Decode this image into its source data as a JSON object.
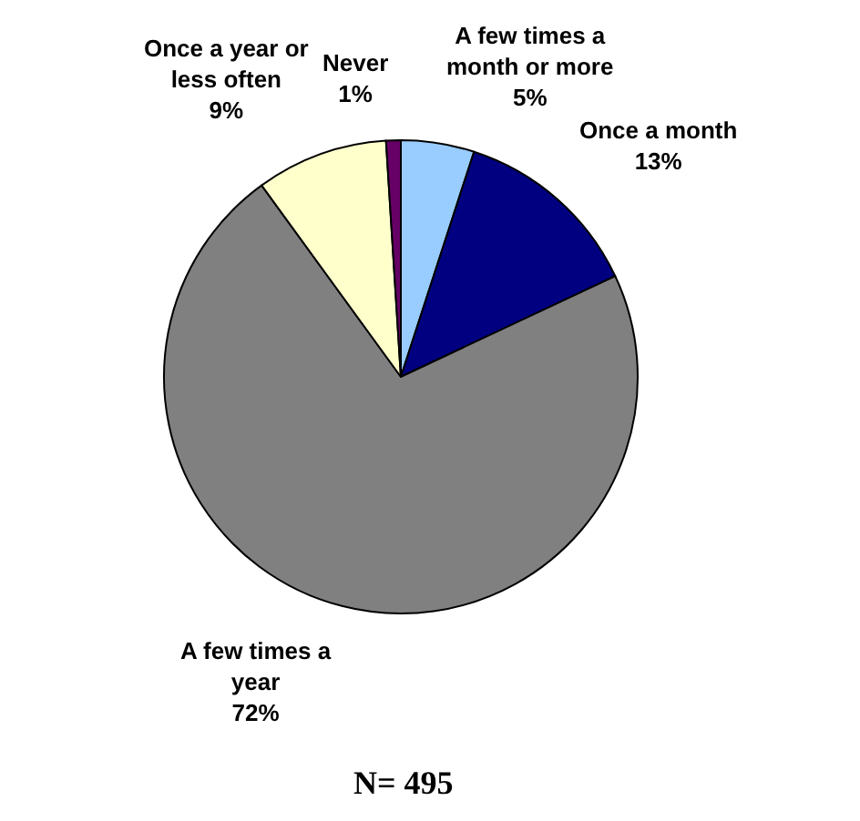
{
  "chart_data": {
    "type": "pie",
    "categories": [
      "A few times a month or more",
      "Once a month",
      "A few times a year",
      "Once a year or less often",
      "Never"
    ],
    "values": [
      5,
      13,
      72,
      9,
      1
    ],
    "value_labels": [
      "5%",
      "13%",
      "72%",
      "9%",
      "1%"
    ],
    "colors": [
      "#99ccff",
      "#000080",
      "#808080",
      "#ffffcc",
      "#660066"
    ],
    "annotations": [
      "N= 495"
    ]
  }
}
